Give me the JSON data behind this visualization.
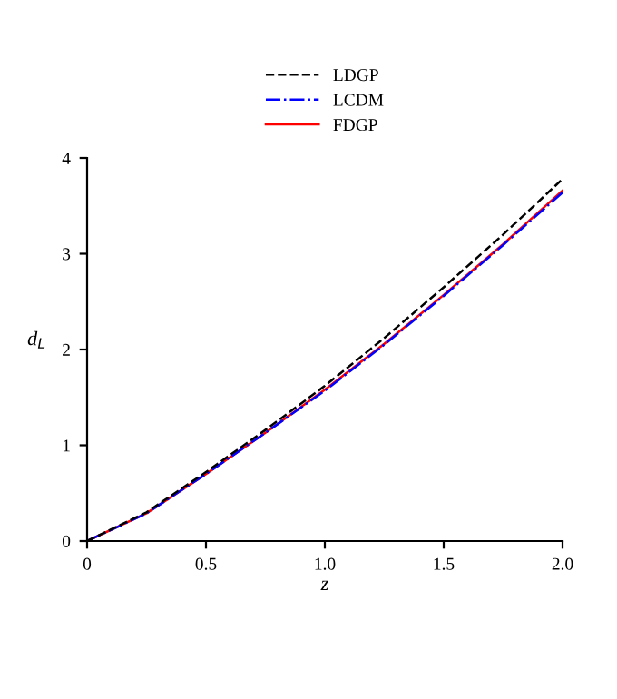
{
  "chart_data": {
    "type": "line",
    "xlabel": "z",
    "ylabel": "d$_{L}$",
    "x": [
      0,
      0.25,
      0.5,
      0.75,
      1.0,
      1.25,
      1.5,
      1.75,
      2.0
    ],
    "xlim": [
      0,
      2.0
    ],
    "xticks": [
      0,
      0.5,
      {
        "value": 1.0,
        "label": "1.0"
      },
      1.5,
      {
        "value": 2.0,
        "label": "2.0"
      }
    ],
    "ylim": [
      0,
      4
    ],
    "yticks": [
      0,
      1,
      2,
      3,
      4
    ],
    "legend": "top",
    "grid": false,
    "series": [
      {
        "name": "LDGP",
        "color": "#000000",
        "line_style": "dashed",
        "values": [
          0,
          0.3,
          0.72,
          1.16,
          1.62,
          2.12,
          2.65,
          3.2,
          3.78
        ]
      },
      {
        "name": "LCDM",
        "color": "#0000ff",
        "line_style": "dashdot",
        "values": [
          0,
          0.29,
          0.7,
          1.13,
          1.57,
          2.05,
          2.56,
          3.09,
          3.64
        ]
      },
      {
        "name": "FDGP",
        "color": "#ff0000",
        "line_style": "solid",
        "values": [
          0,
          0.29,
          0.7,
          1.13,
          1.58,
          2.06,
          2.57,
          3.1,
          3.66
        ]
      }
    ]
  }
}
